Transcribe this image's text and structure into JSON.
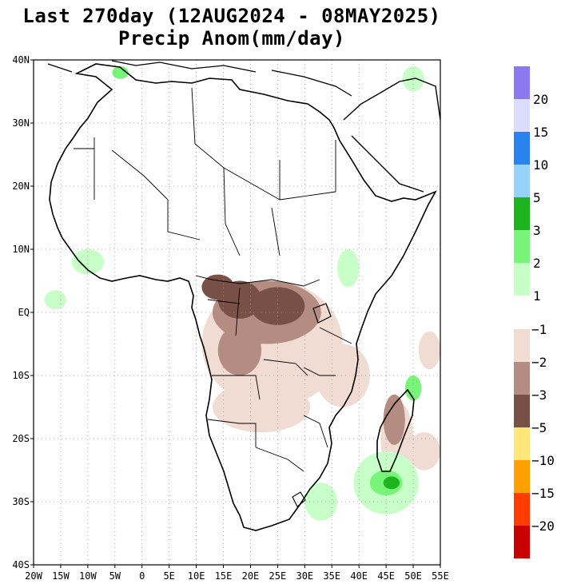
{
  "title": {
    "line1": "Last 270day (12AUG2024 - 08MAY2025)",
    "line2": "Precip Anom(mm/day)"
  },
  "axes": {
    "lon_range": [
      -20,
      55
    ],
    "lat_range": [
      -40,
      40
    ],
    "x_ticks": [
      {
        "value": -20,
        "label": "20W"
      },
      {
        "value": -15,
        "label": "15W"
      },
      {
        "value": -10,
        "label": "10W"
      },
      {
        "value": -5,
        "label": "5W"
      },
      {
        "value": 0,
        "label": "0"
      },
      {
        "value": 5,
        "label": "5E"
      },
      {
        "value": 10,
        "label": "10E"
      },
      {
        "value": 15,
        "label": "15E"
      },
      {
        "value": 20,
        "label": "20E"
      },
      {
        "value": 25,
        "label": "25E"
      },
      {
        "value": 30,
        "label": "30E"
      },
      {
        "value": 35,
        "label": "35E"
      },
      {
        "value": 40,
        "label": "40E"
      },
      {
        "value": 45,
        "label": "45E"
      },
      {
        "value": 50,
        "label": "50E"
      },
      {
        "value": 55,
        "label": "55E"
      }
    ],
    "y_ticks": [
      {
        "value": 40,
        "label": "40N"
      },
      {
        "value": 30,
        "label": "30N"
      },
      {
        "value": 20,
        "label": "20N"
      },
      {
        "value": 10,
        "label": "10N"
      },
      {
        "value": 0,
        "label": "EQ"
      },
      {
        "value": -10,
        "label": "10S"
      },
      {
        "value": -20,
        "label": "20S"
      },
      {
        "value": -30,
        "label": "30S"
      },
      {
        "value": -40,
        "label": "40S"
      }
    ],
    "grid": "dotted"
  },
  "colorbar": {
    "wet": [
      {
        "color": "#c8ffc8",
        "label": "1"
      },
      {
        "color": "#78f578",
        "label": "2"
      },
      {
        "color": "#1eb41e",
        "label": "3"
      },
      {
        "color": "#96d2fa",
        "label": "5"
      },
      {
        "color": "#2882f0",
        "label": "10"
      },
      {
        "color": "#dcdcff",
        "label": "15"
      },
      {
        "color": "#8c78f0",
        "label": "20"
      }
    ],
    "dry": [
      {
        "color": "#f0dcd2",
        "label": "−1"
      },
      {
        "color": "#b48c82",
        "label": "−2"
      },
      {
        "color": "#785046",
        "label": "−3"
      },
      {
        "color": "#ffe678",
        "label": "−5"
      },
      {
        "color": "#ffa000",
        "label": "−10"
      },
      {
        "color": "#ff3c00",
        "label": "−15"
      },
      {
        "color": "#c80000",
        "label": "−20"
      }
    ]
  },
  "anomaly_regions": [
    {
      "level": -3,
      "lon": 18,
      "lat": 2,
      "rlon": 4,
      "rlat": 3
    },
    {
      "level": -3,
      "lon": 25,
      "lat": 1,
      "rlon": 5,
      "rlat": 3
    },
    {
      "level": -3,
      "lon": 14,
      "lat": 4,
      "rlon": 3,
      "rlat": 2
    },
    {
      "level": -2,
      "lon": 23,
      "lat": 0,
      "rlon": 10,
      "rlat": 5
    },
    {
      "level": -2,
      "lon": 18,
      "lat": -6,
      "rlon": 4,
      "rlat": 4
    },
    {
      "level": -2,
      "lon": 46.5,
      "lat": -17,
      "rlon": 2,
      "rlat": 4
    },
    {
      "level": -1,
      "lon": 24,
      "lat": -5,
      "rlon": 13,
      "rlat": 10
    },
    {
      "level": -1,
      "lon": 22,
      "lat": -15,
      "rlon": 9,
      "rlat": 4
    },
    {
      "level": -1,
      "lon": 37,
      "lat": -10,
      "rlon": 5,
      "rlat": 5
    },
    {
      "level": -1,
      "lon": 47,
      "lat": -20,
      "rlon": 3,
      "rlat": 6
    },
    {
      "level": -1,
      "lon": 53,
      "lat": -6,
      "rlon": 2,
      "rlat": 3
    },
    {
      "level": -1,
      "lon": 52,
      "lat": -22,
      "rlon": 3,
      "rlat": 3
    },
    {
      "level": 1,
      "lon": 45,
      "lat": -27,
      "rlon": 6,
      "rlat": 5
    },
    {
      "level": 1,
      "lon": 33,
      "lat": -30,
      "rlon": 3,
      "rlat": 3
    },
    {
      "level": 1,
      "lon": -16,
      "lat": 2,
      "rlon": 2,
      "rlat": 1.5
    },
    {
      "level": 1,
      "lon": 38,
      "lat": 7,
      "rlon": 2,
      "rlat": 3
    },
    {
      "level": 1,
      "lon": 50,
      "lat": 37,
      "rlon": 2,
      "rlat": 2
    },
    {
      "level": 1,
      "lon": -10,
      "lat": 8,
      "rlon": 3,
      "rlat": 2
    },
    {
      "level": 2,
      "lon": 45,
      "lat": -27,
      "rlon": 3,
      "rlat": 2
    },
    {
      "level": 2,
      "lon": 50,
      "lat": -12,
      "rlon": 1.5,
      "rlat": 2
    },
    {
      "level": 2,
      "lon": -4,
      "lat": 38,
      "rlon": 1.5,
      "rlat": 1
    },
    {
      "level": 3,
      "lon": 46,
      "lat": -27,
      "rlon": 1.5,
      "rlat": 1
    }
  ]
}
